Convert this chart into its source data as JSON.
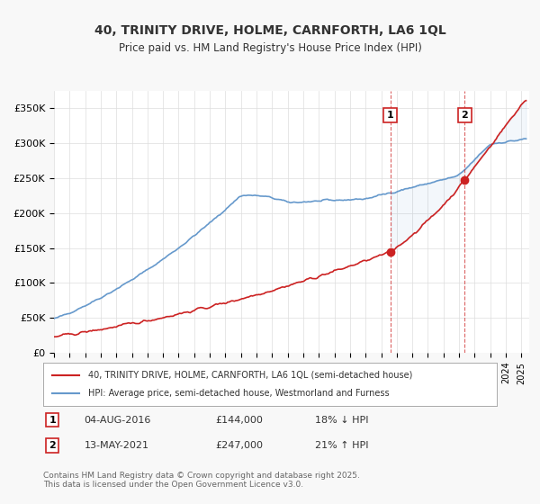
{
  "title": "40, TRINITY DRIVE, HOLME, CARNFORTH, LA6 1QL",
  "subtitle": "Price paid vs. HM Land Registry's House Price Index (HPI)",
  "legend_line1": "40, TRINITY DRIVE, HOLME, CARNFORTH, LA6 1QL (semi-detached house)",
  "legend_line2": "HPI: Average price, semi-detached house, Westmorland and Furness",
  "property_color": "#cc2222",
  "hpi_color": "#6699cc",
  "sale1_date": "04-AUG-2016",
  "sale1_price": 144000,
  "sale1_note": "18% ↓ HPI",
  "sale2_date": "13-MAY-2021",
  "sale2_price": 247000,
  "sale2_note": "21% ↑ HPI",
  "sale1_year": 2016.58,
  "sale2_year": 2021.36,
  "ylim": [
    0,
    375000
  ],
  "xlim_start": 1995,
  "xlim_end": 2025.5,
  "footer": "Contains HM Land Registry data © Crown copyright and database right 2025.\nThis data is licensed under the Open Government Licence v3.0.",
  "background_color": "#f8f8f8",
  "plot_bg_color": "#ffffff",
  "grid_color": "#dddddd"
}
